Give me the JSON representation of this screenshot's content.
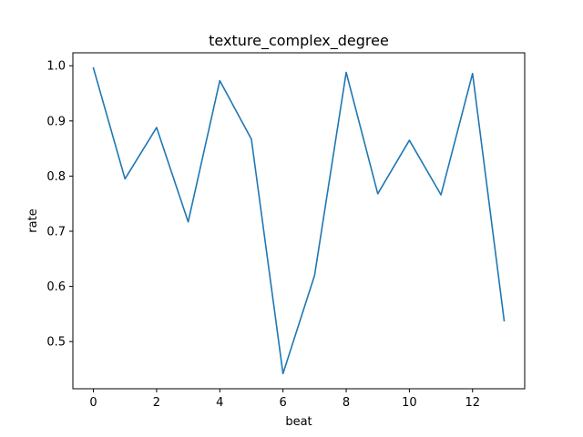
{
  "chart_data": {
    "type": "line",
    "title": "texture_complex_degree",
    "xlabel": "beat",
    "ylabel": "rate",
    "x": [
      0,
      1,
      2,
      3,
      4,
      5,
      6,
      7,
      8,
      9,
      10,
      11,
      12,
      13
    ],
    "series": [
      {
        "values": [
          0.996,
          0.795,
          0.888,
          0.717,
          0.973,
          0.867,
          0.442,
          0.62,
          0.988,
          0.768,
          0.865,
          0.766,
          0.986,
          0.538
        ],
        "color": "#1f77b4"
      }
    ],
    "xlim": [
      -0.65,
      13.65
    ],
    "ylim": [
      0.4145,
      1.0235
    ],
    "xticks": [
      0,
      2,
      4,
      6,
      8,
      10,
      12
    ],
    "xtick_labels": [
      "0",
      "2",
      "4",
      "6",
      "8",
      "10",
      "12"
    ],
    "yticks": [
      0.5,
      0.6,
      0.7,
      0.8,
      0.9,
      1.0
    ],
    "ytick_labels": [
      "0.5",
      "0.6",
      "0.7",
      "0.8",
      "0.9",
      "1.0"
    ],
    "grid": false,
    "legend": "none"
  }
}
